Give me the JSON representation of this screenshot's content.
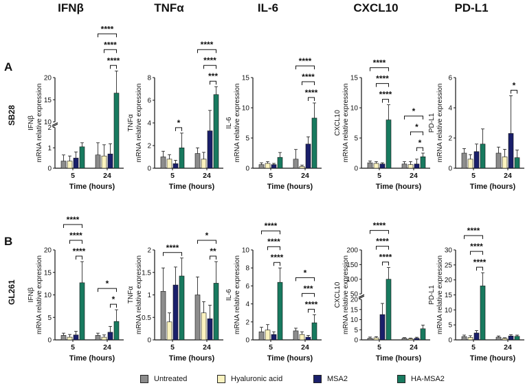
{
  "genes": [
    "IFNβ",
    "TNFα",
    "IL-6",
    "CXCL10",
    "PD-L1"
  ],
  "rows": [
    {
      "label": "A",
      "name": "SB28"
    },
    {
      "label": "B",
      "name": "GL261"
    }
  ],
  "ylabel_suffix": "mRNA relative expression",
  "legend": [
    {
      "name": "Untreated",
      "color": "#8c8c8c"
    },
    {
      "name": "Hyaluronic acid",
      "color": "#fbf3bf"
    },
    {
      "name": "MSA2",
      "color": "#1a1f6b"
    },
    {
      "name": "HA-MSA2",
      "color": "#187a5f"
    }
  ],
  "chart_data": [
    {
      "row": "SB28",
      "gene": "IFNβ",
      "type": "bar",
      "xlabel": "Time  (hours)",
      "categories": [
        "5",
        "24"
      ],
      "ylabel": "IFNβ mRNA relative expression",
      "axis_breaks": [
        {
          "lower_range": [
            0,
            2
          ],
          "lower_ticks": [
            0,
            1,
            2
          ],
          "upper_range": [
            10,
            20
          ],
          "upper_ticks": [
            10,
            15,
            20
          ]
        }
      ],
      "series": [
        {
          "name": "Untreated",
          "values": [
            0.35,
            0.65
          ],
          "errors": [
            0.3,
            0.6
          ]
        },
        {
          "name": "Hyaluronic acid",
          "values": [
            0.35,
            0.6
          ],
          "errors": [
            0.25,
            0.55
          ]
        },
        {
          "name": "MSA2",
          "values": [
            0.5,
            0.7
          ],
          "errors": [
            0.3,
            0.5
          ]
        },
        {
          "name": "HA-MSA2",
          "values": [
            1.05,
            16.5
          ],
          "errors": [
            0.2,
            5
          ]
        }
      ],
      "significance": [
        {
          "time": "24",
          "from": "Untreated",
          "to": "HA-MSA2",
          "label": "****"
        },
        {
          "time": "24",
          "from": "Hyaluronic acid",
          "to": "HA-MSA2",
          "label": "****"
        },
        {
          "time": "24",
          "from": "MSA2",
          "to": "HA-MSA2",
          "label": "****"
        }
      ]
    },
    {
      "row": "SB28",
      "gene": "TNFα",
      "type": "bar",
      "xlabel": "Time  (hours)",
      "categories": [
        "5",
        "24"
      ],
      "ylabel": "TNFα mRNA relative expression",
      "ylim": [
        0,
        8
      ],
      "yticks": [
        0,
        2,
        4,
        6,
        8
      ],
      "series": [
        {
          "name": "Untreated",
          "values": [
            1.0,
            1.3
          ],
          "errors": [
            0.5,
            0.5
          ]
        },
        {
          "name": "Hyaluronic acid",
          "values": [
            0.8,
            0.8
          ],
          "errors": [
            0.4,
            0.6
          ]
        },
        {
          "name": "MSA2",
          "values": [
            0.4,
            3.3
          ],
          "errors": [
            0.3,
            1.8
          ]
        },
        {
          "name": "HA-MSA2",
          "values": [
            1.8,
            6.5
          ],
          "errors": [
            1.3,
            0.7
          ]
        }
      ],
      "significance": [
        {
          "time": "5",
          "from": "MSA2",
          "to": "HA-MSA2",
          "label": "*"
        },
        {
          "time": "24",
          "from": "Untreated",
          "to": "HA-MSA2",
          "label": "****"
        },
        {
          "time": "24",
          "from": "Hyaluronic acid",
          "to": "HA-MSA2",
          "label": "****"
        },
        {
          "time": "24",
          "from": "MSA2",
          "to": "HA-MSA2",
          "label": "***"
        }
      ]
    },
    {
      "row": "SB28",
      "gene": "IL-6",
      "type": "bar",
      "xlabel": "Time  (hours)",
      "categories": [
        "5",
        "24"
      ],
      "ylabel": "IL-6 mRNA relative expression",
      "ylim": [
        0,
        15
      ],
      "yticks": [
        0,
        5,
        10,
        15
      ],
      "series": [
        {
          "name": "Untreated",
          "values": [
            0.6,
            1.5
          ],
          "errors": [
            0.3,
            1.6
          ]
        },
        {
          "name": "Hyaluronic acid",
          "values": [
            0.8,
            0.3
          ],
          "errors": [
            0.3,
            0.2
          ]
        },
        {
          "name": "MSA2",
          "values": [
            0.6,
            4.0
          ],
          "errors": [
            0.2,
            1.2
          ]
        },
        {
          "name": "HA-MSA2",
          "values": [
            1.8,
            8.3
          ],
          "errors": [
            0.8,
            2.5
          ]
        }
      ],
      "significance": [
        {
          "time": "24",
          "from": "Untreated",
          "to": "HA-MSA2",
          "label": "****"
        },
        {
          "time": "24",
          "from": "Hyaluronic acid",
          "to": "HA-MSA2",
          "label": "****"
        },
        {
          "time": "24",
          "from": "MSA2",
          "to": "HA-MSA2",
          "label": "****"
        }
      ]
    },
    {
      "row": "SB28",
      "gene": "CXCL10",
      "type": "bar",
      "xlabel": "Time  (hours)",
      "categories": [
        "5",
        "24"
      ],
      "ylabel": "CXCL10 mRNA relative expression",
      "ylim": [
        0,
        15
      ],
      "yticks": [
        0,
        5,
        10,
        15
      ],
      "series": [
        {
          "name": "Untreated",
          "values": [
            0.9,
            0.7
          ],
          "errors": [
            0.3,
            0.4
          ]
        },
        {
          "name": "Hyaluronic acid",
          "values": [
            0.8,
            0.6
          ],
          "errors": [
            0.3,
            0.5
          ]
        },
        {
          "name": "MSA2",
          "values": [
            0.7,
            0.7
          ],
          "errors": [
            0.2,
            0.8
          ]
        },
        {
          "name": "HA-MSA2",
          "values": [
            8.0,
            1.9
          ],
          "errors": [
            2.5,
            0.6
          ]
        }
      ],
      "significance": [
        {
          "time": "5",
          "from": "Untreated",
          "to": "HA-MSA2",
          "label": "****"
        },
        {
          "time": "5",
          "from": "Hyaluronic acid",
          "to": "HA-MSA2",
          "label": "****"
        },
        {
          "time": "5",
          "from": "MSA2",
          "to": "HA-MSA2",
          "label": "****"
        },
        {
          "time": "24",
          "from": "Untreated",
          "to": "HA-MSA2",
          "label": "*"
        },
        {
          "time": "24",
          "from": "Hyaluronic acid",
          "to": "HA-MSA2",
          "label": "*"
        },
        {
          "time": "24",
          "from": "MSA2",
          "to": "HA-MSA2",
          "label": "*"
        }
      ]
    },
    {
      "row": "SB28",
      "gene": "PD-L1",
      "type": "bar",
      "xlabel": "Time  (hours)",
      "categories": [
        "5",
        "24"
      ],
      "ylabel": "PD-L1 mRNA relative expression",
      "ylim": [
        0,
        6
      ],
      "yticks": [
        0,
        2,
        4,
        6
      ],
      "series": [
        {
          "name": "Untreated",
          "values": [
            1.0,
            1.0
          ],
          "errors": [
            0.3,
            0.4
          ]
        },
        {
          "name": "Hyaluronic acid",
          "values": [
            0.6,
            0.75
          ],
          "errors": [
            0.3,
            0.5
          ]
        },
        {
          "name": "MSA2",
          "values": [
            1.1,
            2.3
          ],
          "errors": [
            0.5,
            2.5
          ]
        },
        {
          "name": "HA-MSA2",
          "values": [
            1.6,
            0.7
          ],
          "errors": [
            1.0,
            0.5
          ]
        }
      ],
      "significance": [
        {
          "time": "24",
          "from": "MSA2",
          "to": "HA-MSA2",
          "label": "*"
        }
      ]
    },
    {
      "row": "GL261",
      "gene": "IFNβ",
      "type": "bar",
      "xlabel": "Time  (hours)",
      "categories": [
        "5",
        "24"
      ],
      "ylabel": "IFNβ mRNA relative expression",
      "ylim": [
        0,
        20
      ],
      "yticks": [
        0,
        5,
        10,
        15,
        20
      ],
      "series": [
        {
          "name": "Untreated",
          "values": [
            1.0,
            1.0
          ],
          "errors": [
            0.5,
            0.5
          ]
        },
        {
          "name": "Hyaluronic acid",
          "values": [
            0.6,
            0.6
          ],
          "errors": [
            0.6,
            0.5
          ]
        },
        {
          "name": "MSA2",
          "values": [
            1.1,
            1.7
          ],
          "errors": [
            0.8,
            1.3
          ]
        },
        {
          "name": "HA-MSA2",
          "values": [
            12.7,
            4.1
          ],
          "errors": [
            4.7,
            2.6
          ]
        }
      ],
      "significance": [
        {
          "time": "5",
          "from": "Untreated",
          "to": "HA-MSA2",
          "label": "****"
        },
        {
          "time": "5",
          "from": "Hyaluronic acid",
          "to": "HA-MSA2",
          "label": "****"
        },
        {
          "time": "5",
          "from": "MSA2",
          "to": "HA-MSA2",
          "label": "****"
        },
        {
          "time": "24",
          "from": "Untreated",
          "to": "HA-MSA2",
          "label": "*"
        },
        {
          "time": "24",
          "from": "MSA2",
          "to": "HA-MSA2",
          "label": "*"
        }
      ]
    },
    {
      "row": "GL261",
      "gene": "TNFα",
      "type": "bar",
      "xlabel": "Time  (hours)",
      "categories": [
        "5",
        "24"
      ],
      "ylabel": "TNFα mRNA relative expression",
      "ylim": [
        0,
        2.0
      ],
      "yticks": [
        0,
        0.5,
        1.0,
        1.5,
        2.0
      ],
      "series": [
        {
          "name": "Untreated",
          "values": [
            1.08,
            1.0
          ],
          "errors": [
            0.52,
            0.4
          ]
        },
        {
          "name": "Hyaluronic acid",
          "values": [
            0.4,
            0.6
          ],
          "errors": [
            0.2,
            0.25
          ]
        },
        {
          "name": "MSA2",
          "values": [
            1.22,
            0.47
          ],
          "errors": [
            0.4,
            0.3
          ]
        },
        {
          "name": "HA-MSA2",
          "values": [
            1.42,
            1.26
          ],
          "errors": [
            0.4,
            0.48
          ]
        }
      ],
      "significance": [
        {
          "time": "5",
          "from": "Untreated",
          "to": "HA-MSA2",
          "label": "****"
        },
        {
          "time": "24",
          "from": "Untreated",
          "to": "HA-MSA2",
          "label": "*"
        },
        {
          "time": "24",
          "from": "MSA2",
          "to": "HA-MSA2",
          "label": "**"
        }
      ]
    },
    {
      "row": "GL261",
      "gene": "IL-6",
      "type": "bar",
      "xlabel": "Time  (hours)",
      "categories": [
        "5",
        "24"
      ],
      "ylabel": "IL-6 mRNA relative expression",
      "ylim": [
        0,
        10
      ],
      "yticks": [
        0,
        2,
        4,
        6,
        8,
        10
      ],
      "series": [
        {
          "name": "Untreated",
          "values": [
            0.9,
            1.0
          ],
          "errors": [
            0.5,
            0.3
          ]
        },
        {
          "name": "Hyaluronic acid",
          "values": [
            1.1,
            0.6
          ],
          "errors": [
            0.6,
            0.3
          ]
        },
        {
          "name": "MSA2",
          "values": [
            0.6,
            0.3
          ],
          "errors": [
            0.3,
            0.2
          ]
        },
        {
          "name": "HA-MSA2",
          "values": [
            6.4,
            1.9
          ],
          "errors": [
            1.6,
            0.9
          ]
        }
      ],
      "significance": [
        {
          "time": "5",
          "from": "Untreated",
          "to": "HA-MSA2",
          "label": "****"
        },
        {
          "time": "5",
          "from": "Hyaluronic acid",
          "to": "HA-MSA2",
          "label": "****"
        },
        {
          "time": "5",
          "from": "MSA2",
          "to": "HA-MSA2",
          "label": "****"
        },
        {
          "time": "24",
          "from": "Untreated",
          "to": "HA-MSA2",
          "label": "*"
        },
        {
          "time": "24",
          "from": "Hyaluronic acid",
          "to": "HA-MSA2",
          "label": "***"
        },
        {
          "time": "24",
          "from": "MSA2",
          "to": "HA-MSA2",
          "label": "****"
        }
      ]
    },
    {
      "row": "GL261",
      "gene": "CXCL10",
      "type": "bar",
      "xlabel": "Time  (hours)",
      "categories": [
        "5",
        "24"
      ],
      "ylabel": "CXCL10 mRNA relative expression",
      "axis_breaks": [
        {
          "lower_range": [
            0,
            20
          ],
          "lower_ticks": [
            0,
            5,
            10,
            15,
            20
          ],
          "upper_range": [
            50,
            200
          ],
          "upper_ticks": [
            50,
            100,
            150,
            200
          ]
        }
      ],
      "series": [
        {
          "name": "Untreated",
          "values": [
            0.8,
            0.8
          ],
          "errors": [
            0.6,
            0.3
          ]
        },
        {
          "name": "Hyaluronic acid",
          "values": [
            1.0,
            0.6
          ],
          "errors": [
            0.6,
            0.3
          ]
        },
        {
          "name": "MSA2",
          "values": [
            12.5,
            0.8
          ],
          "errors": [
            5.5,
            0.5
          ]
        },
        {
          "name": "HA-MSA2",
          "values": [
            100,
            5.5
          ],
          "errors": [
            40,
            1.8
          ]
        }
      ],
      "significance": [
        {
          "time": "5",
          "from": "Untreated",
          "to": "HA-MSA2",
          "label": "****"
        },
        {
          "time": "5",
          "from": "Hyaluronic acid",
          "to": "HA-MSA2",
          "label": "****"
        },
        {
          "time": "5",
          "from": "MSA2",
          "to": "HA-MSA2",
          "label": "****"
        }
      ]
    },
    {
      "row": "GL261",
      "gene": "PD-L1",
      "type": "bar",
      "xlabel": "Time  (hours)",
      "categories": [
        "5",
        "24"
      ],
      "ylabel": "PD-L1 mRNA relative expression",
      "ylim": [
        0,
        30
      ],
      "yticks": [
        0,
        5,
        10,
        15,
        20,
        25,
        30
      ],
      "series": [
        {
          "name": "Untreated",
          "values": [
            1.1,
            0.9
          ],
          "errors": [
            0.5,
            0.4
          ]
        },
        {
          "name": "Hyaluronic acid",
          "values": [
            0.8,
            0.5
          ],
          "errors": [
            0.6,
            0.2
          ]
        },
        {
          "name": "MSA2",
          "values": [
            2.3,
            1.3
          ],
          "errors": [
            0.8,
            0.4
          ]
        },
        {
          "name": "HA-MSA2",
          "values": [
            18,
            1.2
          ],
          "errors": [
            4.4,
            0.4
          ]
        }
      ],
      "significance": [
        {
          "time": "5",
          "from": "Untreated",
          "to": "HA-MSA2",
          "label": "****"
        },
        {
          "time": "5",
          "from": "Hyaluronic acid",
          "to": "HA-MSA2",
          "label": "****"
        },
        {
          "time": "5",
          "from": "MSA2",
          "to": "HA-MSA2",
          "label": "****"
        }
      ]
    }
  ]
}
